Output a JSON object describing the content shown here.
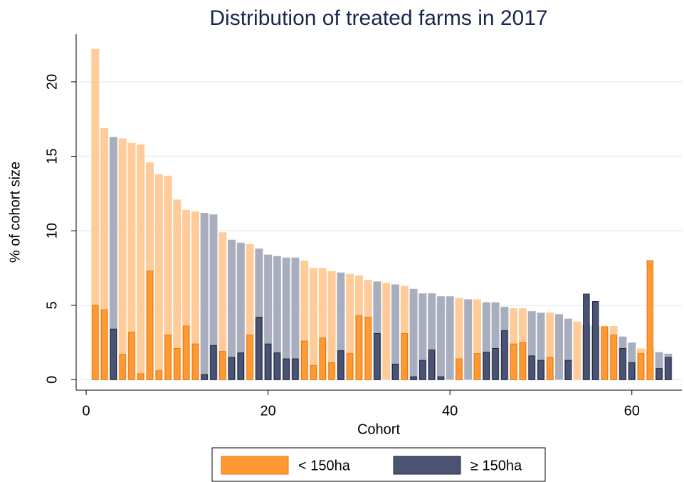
{
  "chart_data": {
    "type": "bar",
    "title": "Distribution of treated farms in 2017",
    "x_label": "Cohort",
    "y_label": "% of cohort size",
    "xlim": [
      -1.1,
      65.5
    ],
    "xticks": [
      0,
      20,
      40,
      60
    ],
    "ylim": [
      -0.7,
      23.2
    ],
    "yticks": [
      0,
      5,
      10,
      15,
      20
    ],
    "grid": true,
    "legend": "bottom",
    "series": [
      {
        "name": "< 150ha",
        "color": "#ff9933",
        "edge_color": "#e87810",
        "background_color": "#ffcc99",
        "x": [
          1,
          2,
          4,
          5,
          6,
          7,
          8,
          9,
          10,
          11,
          12,
          15,
          18,
          24,
          25,
          26,
          27,
          29,
          30,
          31,
          33,
          35,
          41,
          43,
          47,
          48,
          51,
          54,
          57,
          58,
          61,
          62
        ],
        "values": [
          5.0,
          4.7,
          1.7,
          3.2,
          0.4,
          7.3,
          0.6,
          3.0,
          2.1,
          3.6,
          2.4,
          1.9,
          3.0,
          2.6,
          0.95,
          2.8,
          1.15,
          1.75,
          4.3,
          4.2,
          0,
          3.1,
          1.4,
          1.75,
          2.4,
          2.5,
          1.5,
          0,
          3.55,
          3.0,
          1.75,
          8.0
        ],
        "background_values": [
          22.2,
          16.9,
          16.2,
          15.9,
          15.8,
          14.6,
          13.8,
          13.7,
          12.1,
          11.4,
          11.3,
          9.9,
          9.1,
          8.0,
          7.5,
          7.5,
          7.3,
          7.1,
          7.0,
          6.7,
          6.5,
          6.3,
          5.5,
          5.4,
          4.8,
          4.8,
          4.5,
          3.9,
          3.6,
          3.6,
          2.1,
          2.0
        ]
      },
      {
        "name": "≥ 150ha",
        "color": "#4a5472",
        "edge_color": "#1a2340",
        "background_color": "#a9aebf",
        "x": [
          3,
          13,
          14,
          16,
          17,
          19,
          20,
          21,
          22,
          23,
          28,
          32,
          34,
          36,
          37,
          38,
          39,
          40,
          42,
          44,
          45,
          46,
          49,
          50,
          52,
          53,
          55,
          56,
          59,
          60,
          63,
          64
        ],
        "values": [
          3.4,
          0.35,
          2.3,
          1.5,
          1.8,
          4.2,
          2.4,
          1.8,
          1.4,
          1.4,
          1.95,
          3.1,
          1.05,
          0.2,
          1.3,
          2.0,
          0.2,
          0,
          0,
          1.85,
          2.1,
          3.3,
          1.6,
          1.3,
          0,
          1.3,
          5.75,
          5.25,
          2.1,
          1.15,
          0.75,
          1.5
        ],
        "background_values": [
          16.3,
          11.2,
          11.1,
          9.4,
          9.2,
          8.8,
          8.4,
          8.3,
          8.2,
          8.2,
          7.2,
          6.6,
          6.4,
          6.1,
          5.8,
          5.8,
          5.6,
          5.6,
          5.4,
          5.2,
          5.2,
          4.9,
          4.6,
          4.5,
          4.4,
          4.1,
          3.7,
          3.6,
          2.9,
          2.5,
          1.85,
          1.75
        ]
      }
    ]
  }
}
